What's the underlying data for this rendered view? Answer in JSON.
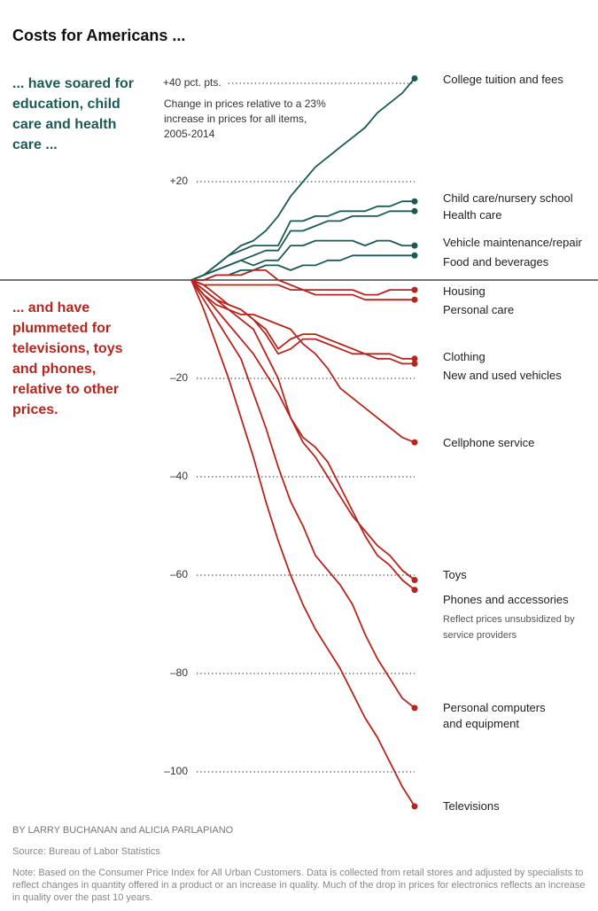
{
  "chart_data": {
    "type": "line",
    "title": "Costs for Americans ...",
    "subtitle_up": "... have soared for education, child care and health care ...",
    "subtitle_down": "... and have plummeted for televisions, toys and phones, relative to other prices.",
    "annotation": "Change in prices relative to a 23% increase in prices for all items, 2005-2014",
    "phones_note": "Reflect prices unsubsidized by service providers",
    "byline": "BY LARRY BUCHANAN and ALICIA PARLAPIANO",
    "source": "Source: Bureau of Labor Statistics",
    "note": "Note: Based on the Consumer Price Index for All Urban Customers. Data is collected from retail stores and adjusted by specialists to reflect changes in quantity offered in a product or an increase in quality. Much of the drop in prices for electronics reflects an increase in quality over the past 10 years.",
    "ylim": [
      -110,
      45
    ],
    "yticks": [
      {
        "value": 40,
        "label": "+40 pct. pts."
      },
      {
        "value": 20,
        "label": "+20"
      },
      {
        "value": -20,
        "label": "–20"
      },
      {
        "value": -40,
        "label": "–40"
      },
      {
        "value": -60,
        "label": "–60"
      },
      {
        "value": -80,
        "label": "–80"
      },
      {
        "value": -100,
        "label": "–100"
      }
    ],
    "grid": true,
    "series": [
      {
        "name": "College tuition and fees",
        "color": "#1d5a55",
        "values": [
          0,
          1,
          3,
          5,
          7,
          8,
          10,
          13,
          17,
          20,
          23,
          25,
          27,
          29,
          31,
          34,
          36,
          38,
          41
        ]
      },
      {
        "name": "Child care/nursery school",
        "color": "#1d5a55",
        "values": [
          0,
          1,
          3,
          5,
          6,
          7,
          7,
          7,
          12,
          12,
          13,
          13,
          14,
          14,
          14,
          15,
          15,
          16,
          16
        ]
      },
      {
        "name": "Health care",
        "color": "#1d5a55",
        "values": [
          0,
          1,
          2,
          3,
          4,
          5,
          6,
          6,
          10,
          10,
          11,
          12,
          12,
          13,
          13,
          13,
          14,
          14,
          14
        ]
      },
      {
        "name": "Vehicle maintenance/repair",
        "color": "#1d5a55",
        "values": [
          0,
          1,
          2,
          3,
          4,
          3,
          4,
          4,
          7,
          7,
          8,
          8,
          8,
          8,
          7,
          8,
          8,
          7,
          7
        ]
      },
      {
        "name": "Food and beverages",
        "color": "#1d5a55",
        "values": [
          0,
          0,
          1,
          1,
          2,
          2,
          3,
          3,
          2,
          3,
          3,
          4,
          4,
          5,
          5,
          5,
          5,
          5,
          5
        ]
      },
      {
        "name": "Housing",
        "color": "#b5261e",
        "values": [
          0,
          0,
          1,
          1,
          1,
          2,
          2,
          0,
          -1,
          -2,
          -2,
          -2,
          -2,
          -2,
          -3,
          -3,
          -2,
          -2,
          -2
        ]
      },
      {
        "name": "Personal care",
        "color": "#b5261e",
        "values": [
          0,
          -1,
          -1,
          -1,
          -1,
          -1,
          -1,
          -1,
          -2,
          -2,
          -3,
          -3,
          -3,
          -3,
          -4,
          -4,
          -4,
          -4,
          -4
        ]
      },
      {
        "name": "Clothing",
        "color": "#b5261e",
        "values": [
          0,
          -2,
          -4,
          -5,
          -6,
          -8,
          -10,
          -14,
          -12,
          -11,
          -11,
          -12,
          -13,
          -14,
          -15,
          -15,
          -15,
          -16,
          -16
        ]
      },
      {
        "name": "New and used vehicles",
        "color": "#b5261e",
        "values": [
          0,
          -1,
          -3,
          -5,
          -6,
          -8,
          -11,
          -15,
          -14,
          -12,
          -12,
          -13,
          -14,
          -15,
          -15,
          -16,
          -16,
          -17,
          -17
        ]
      },
      {
        "name": "Cellphone service",
        "color": "#b5261e",
        "values": [
          0,
          -3,
          -5,
          -6,
          -7,
          -7,
          -8,
          -9,
          -10,
          -13,
          -15,
          -18,
          -22,
          -24,
          -26,
          -28,
          -30,
          -32,
          -33
        ]
      },
      {
        "name": "Toys",
        "color": "#b5261e",
        "values": [
          0,
          -3,
          -6,
          -9,
          -12,
          -15,
          -19,
          -23,
          -28,
          -33,
          -36,
          -40,
          -44,
          -48,
          -51,
          -54,
          -56,
          -59,
          -61
        ]
      },
      {
        "name": "Phones and accessories",
        "color": "#b5261e",
        "values": [
          0,
          -2,
          -4,
          -6,
          -8,
          -10,
          -15,
          -20,
          -28,
          -32,
          -34,
          -37,
          -42,
          -47,
          -52,
          -56,
          -58,
          -61,
          -63
        ]
      },
      {
        "name": "Personal computers and equipment",
        "color": "#b5261e",
        "values": [
          0,
          -4,
          -8,
          -12,
          -16,
          -23,
          -30,
          -38,
          -45,
          -50,
          -56,
          -59,
          -62,
          -66,
          -72,
          -77,
          -81,
          -85,
          -87
        ]
      },
      {
        "name": "Televisions",
        "color": "#b5261e",
        "values": [
          0,
          -6,
          -13,
          -20,
          -28,
          -36,
          -45,
          -53,
          -60,
          -66,
          -71,
          -75,
          -79,
          -84,
          -89,
          -93,
          -98,
          -103,
          -107
        ]
      }
    ]
  }
}
